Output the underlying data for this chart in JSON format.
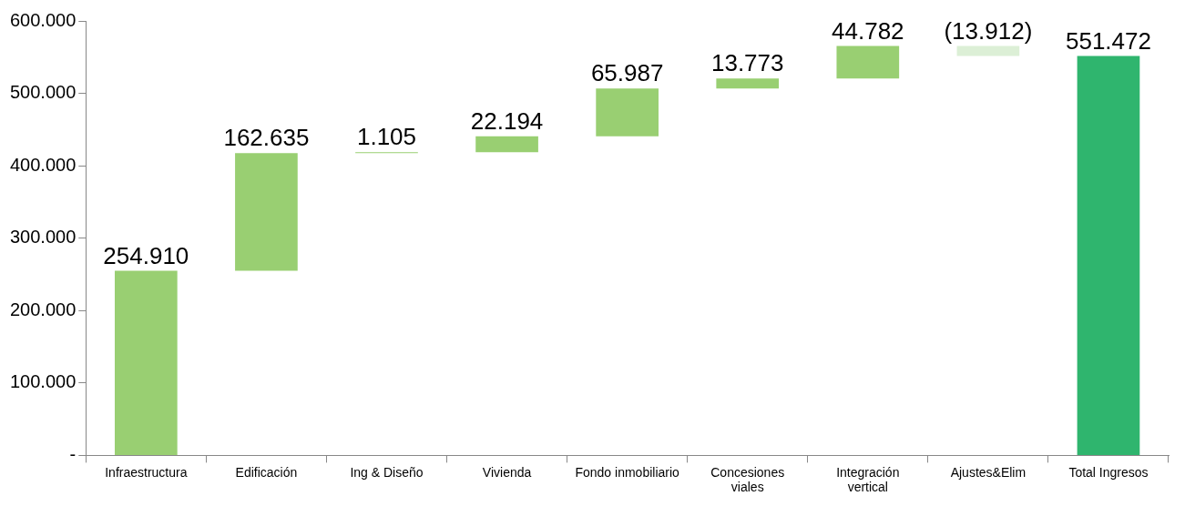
{
  "chart_data": {
    "type": "bar",
    "categories": [
      "Infraestructura",
      "Edificación",
      "Ing & Diseño",
      "Vivienda",
      "Fondo inmobiliario",
      "Concesiones\nviales",
      "Integración\nvertical",
      "Ajustes&Elim",
      "Total Ingresos"
    ],
    "values": [
      254910,
      162635,
      1105,
      22194,
      65987,
      13773,
      44782,
      -13912,
      551472
    ],
    "base": [
      0,
      254910,
      417545,
      418650,
      440844,
      506831,
      520604,
      565386,
      0
    ],
    "colors": [
      "#99cf72",
      "#99cf72",
      "#99cf72",
      "#99cf72",
      "#99cf72",
      "#99cf72",
      "#99cf72",
      "#dcefd6",
      "#2fb56e"
    ],
    "value_labels": [
      "254.910",
      "162.635",
      "1.105",
      "22.194",
      "65.987",
      "13.773",
      "44.782",
      "(13.912)",
      "551.472"
    ],
    "ylim": [
      0,
      600000
    ],
    "yticks": [
      {
        "value": 0,
        "label": "-"
      },
      {
        "value": 100000,
        "label": "100.000"
      },
      {
        "value": 200000,
        "label": "200.000"
      },
      {
        "value": 300000,
        "label": "300.000"
      },
      {
        "value": 400000,
        "label": "400.000"
      },
      {
        "value": 500000,
        "label": "500.000"
      },
      {
        "value": 600000,
        "label": "600.000"
      }
    ],
    "grid": false,
    "legend": false
  }
}
